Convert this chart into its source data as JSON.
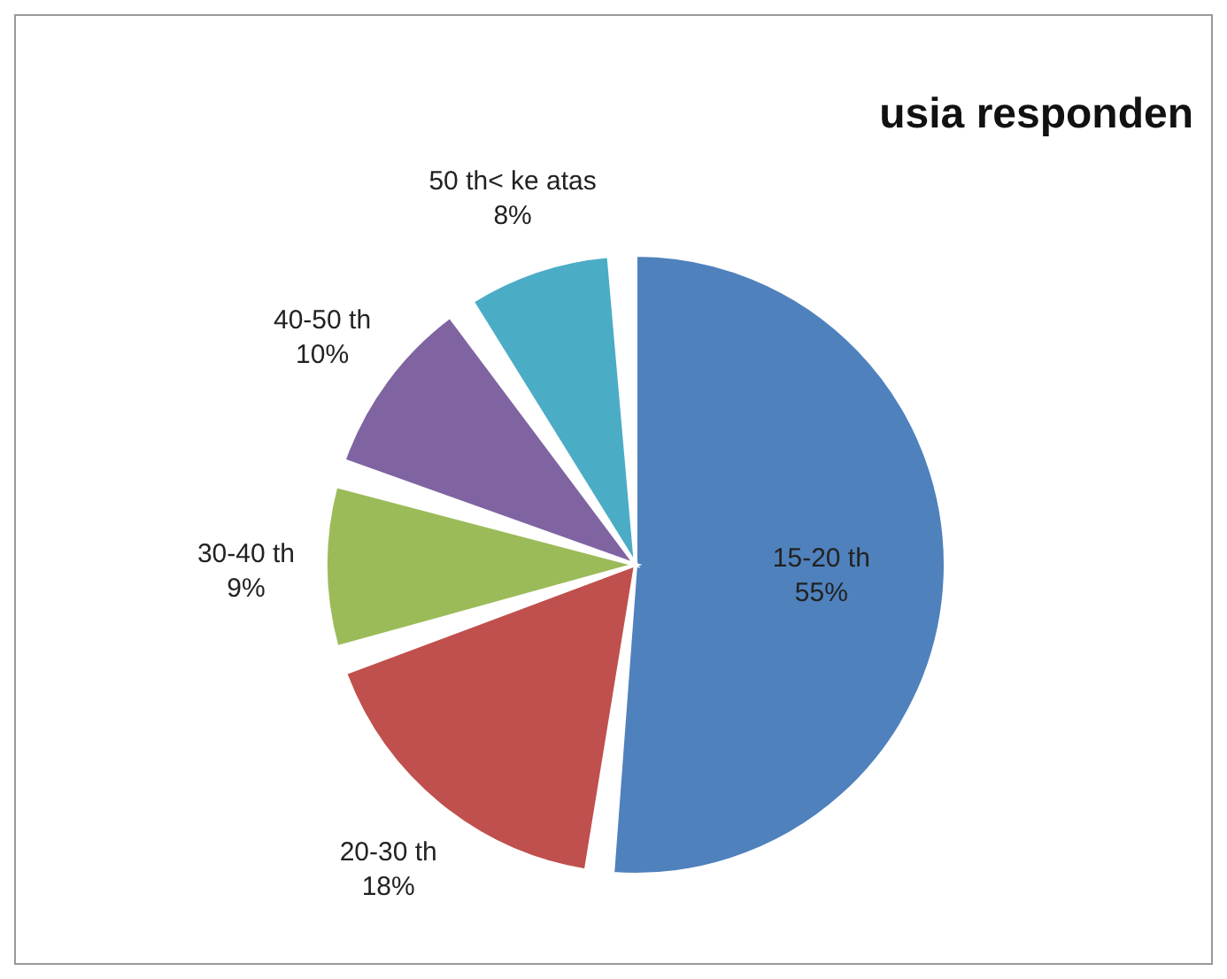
{
  "chart_data": {
    "type": "pie",
    "title": "usia responden",
    "categories": [
      "15-20 th",
      "20-30 th",
      "30-40 th",
      "40-50 th",
      "50 th< ke atas"
    ],
    "values": [
      55,
      18,
      9,
      10,
      8
    ],
    "value_labels": [
      "55%",
      "18%",
      "9%",
      "10%",
      "8%"
    ],
    "colors": [
      "#4f81bd",
      "#c0504d",
      "#9bbb59",
      "#8064a2",
      "#4bacc6"
    ],
    "legend": false
  }
}
